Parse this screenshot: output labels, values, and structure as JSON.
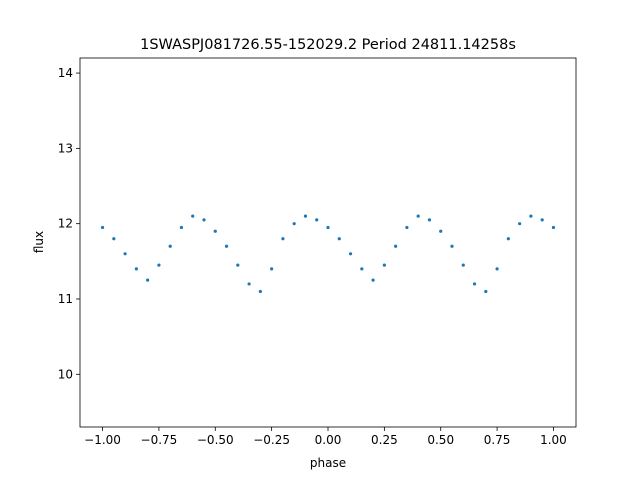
{
  "chart_data": {
    "type": "scatter",
    "title": "1SWASPJ081726.55-152029.2 Period 24811.14258s",
    "xlabel": "phase",
    "ylabel": "flux",
    "xlim": [
      -1.1,
      1.1
    ],
    "ylim": [
      9.3,
      14.2
    ],
    "xticks": [
      -1.0,
      -0.75,
      -0.5,
      -0.25,
      0.0,
      0.25,
      0.5,
      0.75,
      1.0
    ],
    "xtick_labels": [
      "−1.00",
      "−0.75",
      "−0.50",
      "−0.25",
      "0.00",
      "0.25",
      "0.50",
      "0.75",
      "1.00"
    ],
    "yticks": [
      10,
      11,
      12,
      13,
      14
    ],
    "ytick_labels": [
      "10",
      "11",
      "12",
      "13",
      "14"
    ],
    "grid": false,
    "point_color": "#1f77b4",
    "series": [
      {
        "x": [
          -1.0,
          -0.95,
          -0.9,
          -0.85,
          -0.8,
          -0.75,
          -0.7,
          -0.65,
          -0.6,
          -0.55,
          -0.5,
          -0.45,
          -0.4,
          -0.35,
          -0.3,
          -0.25,
          -0.2,
          -0.15,
          -0.1,
          -0.05,
          0.0,
          0.05,
          0.1,
          0.15,
          0.2,
          0.25,
          0.3,
          0.35,
          0.4,
          0.45,
          0.5,
          0.55,
          0.6,
          0.65,
          0.7,
          0.75,
          0.8,
          0.85,
          0.9,
          0.95,
          1.0
        ],
        "y": [
          11.95,
          11.8,
          11.6,
          11.4,
          11.25,
          11.45,
          11.7,
          11.95,
          12.1,
          12.05,
          11.9,
          11.7,
          11.45,
          11.2,
          11.1,
          11.4,
          11.8,
          12.0,
          12.1,
          12.05,
          11.95,
          11.8,
          11.6,
          11.4,
          11.25,
          11.45,
          11.7,
          11.95,
          12.1,
          12.05,
          11.9,
          11.7,
          11.45,
          11.2,
          11.1,
          11.4,
          11.8,
          12.0,
          12.1,
          12.05,
          11.95
        ]
      }
    ]
  }
}
